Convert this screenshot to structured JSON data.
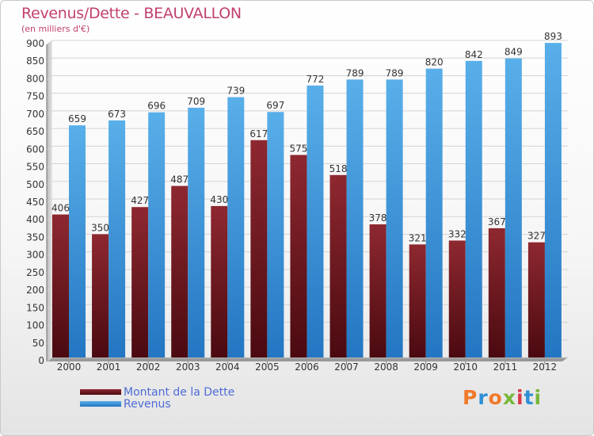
{
  "header": {
    "title": "Revenus/Dette - BEAUVALLON",
    "subtitle": "(en milliers d'€)"
  },
  "legend": {
    "debt_label": "Montant de la Dette",
    "revenue_label": "Revenus"
  },
  "logo": {
    "text": "Proxiti"
  },
  "colors": {
    "debt": "#7a1c22",
    "revenue": "#3f9be0",
    "title": "#c2406f",
    "legend_text": "#4e6bd6"
  },
  "chart_data": {
    "type": "bar",
    "title": "Revenus/Dette - BEAUVALLON",
    "ylabel": "(en milliers d'€)",
    "xlabel": "",
    "ylim": [
      0,
      900
    ],
    "yticks": [
      0,
      50,
      100,
      150,
      200,
      250,
      300,
      350,
      400,
      450,
      500,
      550,
      600,
      650,
      700,
      750,
      800,
      850,
      900
    ],
    "grid": true,
    "legend_position": "bottom-left",
    "categories": [
      "2000",
      "2001",
      "2002",
      "2003",
      "2004",
      "2005",
      "2006",
      "2007",
      "2008",
      "2009",
      "2010",
      "2011",
      "2012"
    ],
    "series": [
      {
        "name": "Montant de la Dette",
        "values": [
          406,
          350,
          427,
          487,
          430,
          617,
          575,
          518,
          378,
          321,
          332,
          367,
          327
        ]
      },
      {
        "name": "Revenus",
        "values": [
          659,
          673,
          696,
          709,
          739,
          697,
          772,
          789,
          789,
          820,
          842,
          849,
          893
        ]
      }
    ]
  }
}
